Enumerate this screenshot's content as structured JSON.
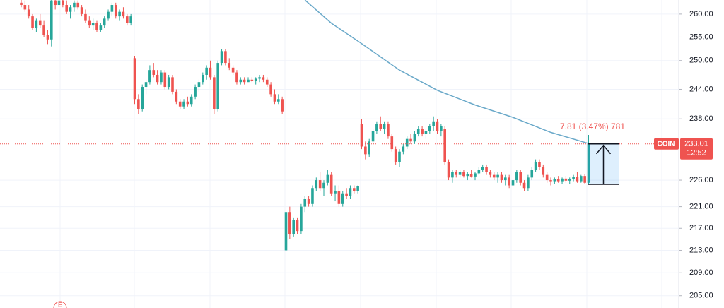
{
  "chart_data": {
    "type": "candlestick",
    "log_scale": true,
    "grid": true,
    "up_color": "#26a69a",
    "down_color": "#ef5350",
    "ma_color": "#6aa9c9",
    "ylim": [
      202.9,
      263.1
    ],
    "yticks": [
      {
        "value": 205,
        "label": "205.00"
      },
      {
        "value": 209,
        "label": "209.00"
      },
      {
        "value": 213,
        "label": "213.00"
      },
      {
        "value": 217,
        "label": "217.00"
      },
      {
        "value": 221,
        "label": "221.00"
      },
      {
        "value": 226,
        "label": "226.00"
      },
      {
        "value": 238,
        "label": "238.00"
      },
      {
        "value": 244,
        "label": "244.00"
      },
      {
        "value": 250,
        "label": "250.00"
      },
      {
        "value": 255,
        "label": "255.00"
      },
      {
        "value": 260,
        "label": "260.00"
      }
    ],
    "candles": [
      [
        262.5,
        263.5,
        261.5,
        262
      ],
      [
        262,
        263,
        260.5,
        261
      ],
      [
        261,
        262,
        259,
        259.5
      ],
      [
        259.5,
        260,
        256.5,
        257
      ],
      [
        257,
        259,
        256,
        258.5
      ],
      [
        258.5,
        260,
        257,
        257.5
      ],
      [
        257.5,
        258.5,
        255,
        255.5
      ],
      [
        255.5,
        256.5,
        253.5,
        254.5
      ],
      [
        254.5,
        264,
        253,
        263
      ],
      [
        263,
        264,
        261,
        262
      ],
      [
        262,
        263.5,
        261,
        263
      ],
      [
        263,
        263.5,
        261.5,
        262
      ],
      [
        262,
        263,
        260,
        260.5
      ],
      [
        260.5,
        262,
        259,
        261.5
      ],
      [
        261.5,
        263,
        260.5,
        262.5
      ],
      [
        262.5,
        263,
        261,
        261.5
      ],
      [
        261.5,
        262,
        259.5,
        260
      ],
      [
        260,
        261,
        258,
        258.5
      ],
      [
        258.5,
        259.5,
        257,
        257.5
      ],
      [
        257.5,
        259,
        256.5,
        258
      ],
      [
        258,
        258.5,
        256,
        256.5
      ],
      [
        256.5,
        258,
        256,
        257.5
      ],
      [
        257.5,
        259.5,
        257,
        259
      ],
      [
        259,
        261,
        258.5,
        260.5
      ],
      [
        260.5,
        262.5,
        259.5,
        262
      ],
      [
        262,
        262.5,
        259,
        259.5
      ],
      [
        259.5,
        261,
        258.5,
        260.5
      ],
      [
        260.5,
        261.5,
        259,
        259.5
      ],
      [
        259.5,
        260,
        257.5,
        258
      ],
      [
        258,
        260,
        257.5,
        259.5
      ],
      [
        250.5,
        251,
        241,
        242
      ],
      [
        242,
        243,
        239,
        240
      ],
      [
        240,
        245,
        239.5,
        244.5
      ],
      [
        244.5,
        246,
        243,
        245.5
      ],
      [
        245.5,
        249,
        245,
        248
      ],
      [
        248,
        249.5,
        246.5,
        247
      ],
      [
        247,
        248,
        245,
        245.5
      ],
      [
        245.5,
        248,
        245,
        247.5
      ],
      [
        247.5,
        248,
        244,
        244.5
      ],
      [
        244.5,
        247,
        244,
        246.5
      ],
      [
        246.5,
        247,
        243,
        243.5
      ],
      [
        243.5,
        244,
        241,
        241.5
      ],
      [
        241.5,
        242,
        240,
        240.5
      ],
      [
        240.5,
        242,
        240,
        241.5
      ],
      [
        241.5,
        242.5,
        240.5,
        241
      ],
      [
        241,
        243,
        240.5,
        242.5
      ],
      [
        242.5,
        245,
        242,
        244.5
      ],
      [
        244.5,
        246,
        243.5,
        245.5
      ],
      [
        245.5,
        247.5,
        245,
        247
      ],
      [
        247,
        249,
        246,
        248.5
      ],
      [
        248.5,
        250,
        246,
        246.5
      ],
      [
        246.5,
        247,
        239,
        240
      ],
      [
        240,
        250,
        239.5,
        249.5
      ],
      [
        249.5,
        252.5,
        249,
        252
      ],
      [
        252,
        252.5,
        249,
        249.5
      ],
      [
        249.5,
        250.5,
        248,
        248.5
      ],
      [
        248.5,
        249,
        247,
        247.5
      ],
      [
        247.5,
        248,
        245,
        245.5
      ],
      [
        245.5,
        246.5,
        245,
        246
      ],
      [
        246,
        246.5,
        245,
        245.5
      ],
      [
        245.5,
        246.5,
        245.5,
        246
      ],
      [
        246,
        246.5,
        245.5,
        245.8
      ],
      [
        245.8,
        246.5,
        245,
        246.2
      ],
      [
        246.2,
        247,
        245.5,
        246.5
      ],
      [
        246.5,
        247,
        245.5,
        246
      ],
      [
        246,
        246.5,
        244.5,
        245
      ],
      [
        245,
        245.5,
        242.5,
        243
      ],
      [
        243,
        244,
        241,
        241.5
      ],
      [
        241.5,
        243,
        241,
        242
      ],
      [
        242,
        242.5,
        239,
        239.5
      ],
      [
        213,
        221,
        208.5,
        220
      ],
      [
        220,
        221,
        215,
        216
      ],
      [
        216,
        219,
        215.5,
        218.5
      ],
      [
        218.5,
        219,
        216,
        216.5
      ],
      [
        216.5,
        221.5,
        216,
        221
      ],
      [
        221,
        223,
        220,
        222.5
      ],
      [
        222.5,
        223,
        221,
        221.5
      ],
      [
        221.5,
        225,
        221,
        224.5
      ],
      [
        224.5,
        226.5,
        224,
        226
      ],
      [
        226,
        227.5,
        224,
        224.5
      ],
      [
        224.5,
        226,
        223,
        225.5
      ],
      [
        225.5,
        228,
        225,
        227
      ],
      [
        227,
        227.5,
        223,
        223.5
      ],
      [
        223.5,
        225,
        222,
        224
      ],
      [
        224,
        225,
        221,
        221.5
      ],
      [
        221.5,
        224,
        221,
        223.5
      ],
      [
        223.5,
        224.5,
        222.5,
        223
      ],
      [
        223,
        225,
        222.5,
        224.5
      ],
      [
        224.5,
        225,
        223.5,
        224
      ],
      [
        224,
        225,
        223.5,
        224.8
      ],
      [
        237,
        238,
        232,
        232.5
      ],
      [
        232.5,
        233.5,
        230,
        231
      ],
      [
        231,
        234,
        230.5,
        233.5
      ],
      [
        233.5,
        236,
        233,
        235.5
      ],
      [
        235.5,
        237.5,
        235,
        237
      ],
      [
        237,
        238.5,
        235.5,
        236
      ],
      [
        236,
        237.5,
        235,
        237
      ],
      [
        237,
        237.5,
        234,
        234.5
      ],
      [
        234.5,
        235,
        231.5,
        232
      ],
      [
        232,
        232.5,
        229,
        229.5
      ],
      [
        229.5,
        232,
        228.5,
        231.5
      ],
      [
        231.5,
        233,
        231,
        232.5
      ],
      [
        232.5,
        234.5,
        232,
        234
      ],
      [
        234,
        235,
        233,
        233.5
      ],
      [
        233.5,
        235.5,
        233,
        235
      ],
      [
        235,
        236.5,
        234.5,
        236
      ],
      [
        236,
        236.5,
        234.5,
        235
      ],
      [
        235,
        236,
        234,
        235.5
      ],
      [
        235.5,
        237,
        235,
        236.5
      ],
      [
        236.5,
        238.5,
        235.5,
        237.5
      ],
      [
        237.5,
        238,
        235,
        235.5
      ],
      [
        235.5,
        237,
        234.5,
        236.5
      ],
      [
        236,
        236.5,
        229,
        229.5
      ],
      [
        229.5,
        230,
        226,
        226.5
      ],
      [
        226.5,
        228,
        225.5,
        227.5
      ],
      [
        227.5,
        228,
        226.5,
        227
      ],
      [
        227,
        228,
        226.5,
        227.5
      ],
      [
        227.5,
        228,
        226.5,
        226.8
      ],
      [
        226.8,
        227.5,
        226,
        227.2
      ],
      [
        227.2,
        228,
        226.5,
        226.7
      ],
      [
        226.7,
        227.5,
        226,
        227.3
      ],
      [
        227.3,
        228.5,
        227,
        228
      ],
      [
        228,
        229,
        227.5,
        228.5
      ],
      [
        228.5,
        229,
        227,
        227.5
      ],
      [
        227.5,
        228,
        226.5,
        227
      ],
      [
        227,
        227.5,
        226,
        226.5
      ],
      [
        226.5,
        227.5,
        225.5,
        227
      ],
      [
        227,
        227.5,
        225.5,
        226
      ],
      [
        226,
        227,
        225,
        226.5
      ],
      [
        226.5,
        227,
        224.5,
        225
      ],
      [
        225,
        226.5,
        224.5,
        226
      ],
      [
        226,
        228,
        225.5,
        227.5
      ],
      [
        227.5,
        228,
        225,
        225.5
      ],
      [
        225.5,
        226,
        224,
        224.5
      ],
      [
        224.5,
        227,
        224,
        226.5
      ],
      [
        226.5,
        228.5,
        226,
        228
      ],
      [
        228,
        230,
        227.5,
        229.5
      ],
      [
        229.5,
        230,
        228,
        228.5
      ],
      [
        228.5,
        229,
        226.5,
        227
      ],
      [
        227,
        227.5,
        225.5,
        226
      ],
      [
        226,
        226.5,
        225,
        225.8
      ],
      [
        225.8,
        226.5,
        225.3,
        226.2
      ],
      [
        226.2,
        226.8,
        225.5,
        225.8
      ],
      [
        225.8,
        226.5,
        225.3,
        226.3
      ],
      [
        226.3,
        226.8,
        225.5,
        225.9
      ],
      [
        225.9,
        226.5,
        225.2,
        226.2
      ],
      [
        226.2,
        227,
        225.8,
        226.6
      ],
      [
        226.6,
        227.5,
        225.5,
        225.8
      ],
      [
        225.8,
        227,
        225.5,
        226.8
      ],
      [
        226.8,
        227.2,
        225.2,
        225.5
      ],
      [
        225.5,
        234.8,
        225.2,
        233.01
      ]
    ],
    "ma": {
      "x": [
        75,
        82,
        90,
        100,
        110,
        120,
        130,
        140,
        150
      ],
      "values": [
        263.1,
        258,
        253.6,
        248,
        243.8,
        240.8,
        238.3,
        235.3,
        233.1
      ]
    },
    "last_price": {
      "symbol": "COIN",
      "value": 233.01,
      "countdown": "12:52"
    },
    "measure": {
      "text": "7.81 (3.47%) 781",
      "low": 225.2,
      "high": 233.01
    },
    "earnings_marker": "E"
  }
}
